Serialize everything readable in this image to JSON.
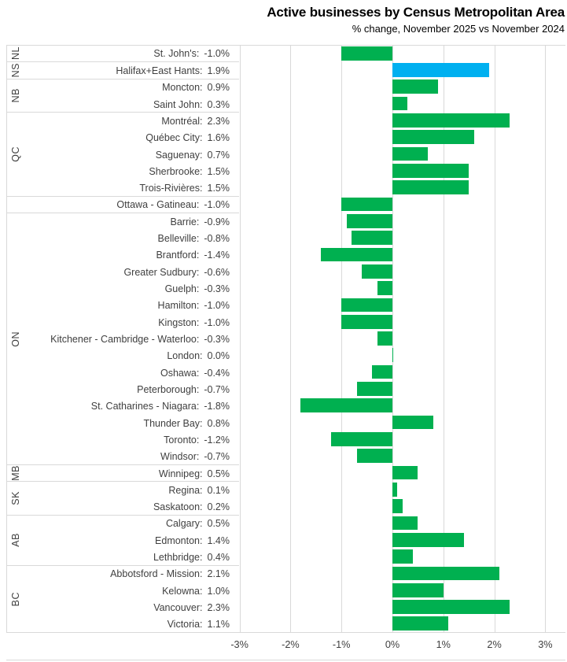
{
  "header": {
    "title": "Active businesses by Census Metropolitan Area",
    "subtitle": "% change, November 2025 vs November 2024"
  },
  "chart_data": {
    "type": "bar",
    "orientation": "horizontal",
    "value_unit": "%",
    "title": "Active businesses by Census Metropolitan Area",
    "subtitle": "% change, November 2025 vs November 2024",
    "xlim": [
      -3,
      3
    ],
    "grid": true,
    "x_ticks": [
      {
        "value": -3,
        "label": "-3%"
      },
      {
        "value": -2,
        "label": "-2%"
      },
      {
        "value": -1,
        "label": "-1%"
      },
      {
        "value": 0,
        "label": "0%"
      },
      {
        "value": 1,
        "label": "1%"
      },
      {
        "value": 2,
        "label": "2%"
      },
      {
        "value": 3,
        "label": "3%"
      }
    ],
    "colors": {
      "bar_default": "#00B050",
      "bar_highlight": "#00B0F0",
      "gridline": "#D9D9D9",
      "border": "#D9D9D9",
      "label_text": "#3F3F3F",
      "title_text": "#000000"
    },
    "groups": [
      {
        "region": "NL",
        "rows": [
          {
            "city": "St. John's",
            "value": -1.0,
            "display": "-1.0%"
          }
        ]
      },
      {
        "region": "NS",
        "rows": [
          {
            "city": "Halifax+East Hants",
            "value": 1.9,
            "display": "1.9%",
            "highlight": true
          }
        ]
      },
      {
        "region": "NB",
        "rows": [
          {
            "city": "Moncton",
            "value": 0.9,
            "display": "0.9%"
          },
          {
            "city": "Saint John",
            "value": 0.3,
            "display": "0.3%"
          }
        ]
      },
      {
        "region": "QC",
        "rows": [
          {
            "city": "Montréal",
            "value": 2.3,
            "display": "2.3%"
          },
          {
            "city": "Québec City",
            "value": 1.6,
            "display": "1.6%"
          },
          {
            "city": "Saguenay",
            "value": 0.7,
            "display": "0.7%"
          },
          {
            "city": "Sherbrooke",
            "value": 1.5,
            "display": "1.5%"
          },
          {
            "city": "Trois-Rivières",
            "value": 1.5,
            "display": "1.5%"
          }
        ]
      },
      {
        "region": "",
        "rows": [
          {
            "city": "Ottawa - Gatineau",
            "value": -1.0,
            "display": "-1.0%"
          }
        ]
      },
      {
        "region": "ON",
        "rows": [
          {
            "city": "Barrie",
            "value": -0.9,
            "display": "-0.9%"
          },
          {
            "city": "Belleville",
            "value": -0.8,
            "display": "-0.8%"
          },
          {
            "city": "Brantford",
            "value": -1.4,
            "display": "-1.4%"
          },
          {
            "city": "Greater Sudbury",
            "value": -0.6,
            "display": "-0.6%"
          },
          {
            "city": "Guelph",
            "value": -0.3,
            "display": "-0.3%"
          },
          {
            "city": "Hamilton",
            "value": -1.0,
            "display": "-1.0%"
          },
          {
            "city": "Kingston",
            "value": -1.0,
            "display": "-1.0%"
          },
          {
            "city": "Kitchener - Cambridge - Waterloo",
            "value": -0.3,
            "display": "-0.3%"
          },
          {
            "city": "London",
            "value": 0.0,
            "display": "0.0%"
          },
          {
            "city": "Oshawa",
            "value": -0.4,
            "display": "-0.4%"
          },
          {
            "city": "Peterborough",
            "value": -0.7,
            "display": "-0.7%"
          },
          {
            "city": "St. Catharines - Niagara",
            "value": -1.8,
            "display": "-1.8%"
          },
          {
            "city": "Thunder Bay",
            "value": 0.8,
            "display": "0.8%"
          },
          {
            "city": "Toronto",
            "value": -1.2,
            "display": "-1.2%"
          },
          {
            "city": "Windsor",
            "value": -0.7,
            "display": "-0.7%"
          }
        ]
      },
      {
        "region": "MB",
        "rows": [
          {
            "city": "Winnipeg",
            "value": 0.5,
            "display": "0.5%"
          }
        ]
      },
      {
        "region": "SK",
        "rows": [
          {
            "city": "Regina",
            "value": 0.1,
            "display": "0.1%"
          },
          {
            "city": "Saskatoon",
            "value": 0.2,
            "display": "0.2%"
          }
        ]
      },
      {
        "region": "AB",
        "rows": [
          {
            "city": "Calgary",
            "value": 0.5,
            "display": "0.5%"
          },
          {
            "city": "Edmonton",
            "value": 1.4,
            "display": "1.4%"
          },
          {
            "city": "Lethbridge",
            "value": 0.4,
            "display": "0.4%"
          }
        ]
      },
      {
        "region": "BC",
        "rows": [
          {
            "city": "Abbotsford - Mission",
            "value": 2.1,
            "display": "2.1%"
          },
          {
            "city": "Kelowna",
            "value": 1.0,
            "display": "1.0%"
          },
          {
            "city": "Vancouver",
            "value": 2.3,
            "display": "2.3%"
          },
          {
            "city": "Victoria",
            "value": 1.1,
            "display": "1.1%"
          }
        ]
      }
    ]
  }
}
